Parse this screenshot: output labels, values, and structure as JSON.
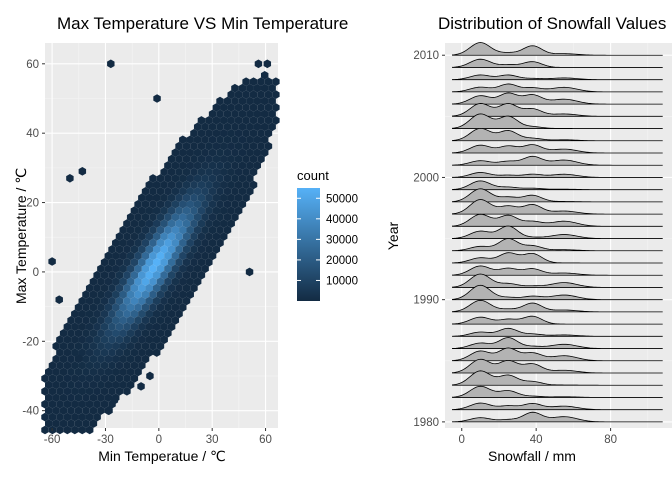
{
  "chart_data": [
    {
      "type": "hexbin",
      "title": "Max Temperature VS Min Temperature",
      "xlabel": "Min Temperatue / ℃",
      "ylabel": "Max Temperature / ℃",
      "xlim": [
        -64,
        67
      ],
      "ylim": [
        -45,
        66
      ],
      "xticks": [
        -60,
        -30,
        0,
        30,
        60
      ],
      "yticks": [
        -40,
        -20,
        0,
        20,
        40,
        60
      ],
      "grid": true,
      "legend": {
        "title": "count",
        "position": "right",
        "breaks": [
          10000,
          20000,
          30000,
          40000,
          50000
        ],
        "labels": [
          "10000",
          "20000",
          "30000",
          "40000",
          "50000"
        ],
        "range": [
          1,
          55000
        ],
        "color_low": "#132B43",
        "color_high": "#56B1F7"
      },
      "density_model": {
        "center": [
          -2,
          2
        ],
        "spread_x": 19,
        "spread_y": 15,
        "correlation": 0.88,
        "max_count": 55000
      },
      "outliers": [
        {
          "x": -27,
          "y": 60
        },
        {
          "x": 56,
          "y": 60
        },
        {
          "x": 61,
          "y": 60
        },
        {
          "x": -1,
          "y": 50
        },
        {
          "x": -50,
          "y": 27
        },
        {
          "x": -43,
          "y": 29
        },
        {
          "x": -60,
          "y": 3
        },
        {
          "x": -56,
          "y": -8
        },
        {
          "x": 51,
          "y": 0
        },
        {
          "x": -28,
          "y": -40
        },
        {
          "x": -25,
          "y": -37
        },
        {
          "x": -5,
          "y": -30
        },
        {
          "x": -10,
          "y": -33
        },
        {
          "x": -45,
          "y": -25
        }
      ]
    },
    {
      "type": "ridgeline",
      "title": "Distribution of Snowfall Values",
      "xlabel": "Snowfall / mm",
      "ylabel": "Year",
      "xlim": [
        -9,
        113
      ],
      "ylim": [
        1979.5,
        2011
      ],
      "xticks": [
        0,
        40,
        80
      ],
      "yticks": [
        1980,
        1990,
        2000,
        2010
      ],
      "years": [
        1980,
        1981,
        1982,
        1983,
        1984,
        1985,
        1986,
        1987,
        1988,
        1989,
        1990,
        1991,
        1992,
        1993,
        1994,
        1995,
        1996,
        1997,
        1998,
        1999,
        2000,
        2001,
        2002,
        2003,
        2004,
        2005,
        2006,
        2007,
        2008,
        2009,
        2010
      ],
      "density_range": [
        -5,
        108
      ],
      "peaks": [
        10,
        25,
        38,
        55
      ],
      "fill_color": "#b3b3b3",
      "grid": true
    }
  ]
}
